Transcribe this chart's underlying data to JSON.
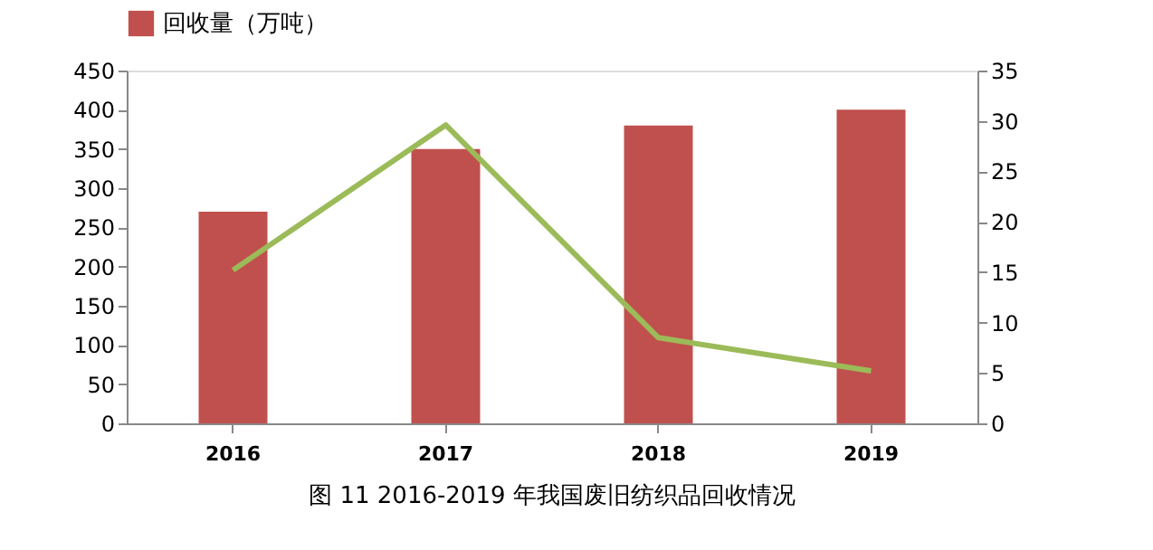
{
  "chart_data": {
    "type": "bar",
    "title": "图 11  2016-2019 年我国废旧纺织品回收情况",
    "categories": [
      "2016",
      "2017",
      "2018",
      "2019"
    ],
    "series": [
      {
        "name": "回收量（万吨）",
        "color": "#c0504d",
        "values": [
          270,
          350,
          380,
          400
        ]
      },
      {
        "type": "line",
        "axis": "y2",
        "color": "#9bbb59",
        "values": [
          15.2,
          29.6,
          8.5,
          5.2
        ]
      }
    ],
    "ylim": [
      0,
      450
    ],
    "yticks": [
      0,
      50,
      100,
      150,
      200,
      250,
      300,
      350,
      400,
      450
    ],
    "y2lim": [
      0,
      35
    ],
    "y2ticks": [
      0,
      5,
      10,
      15,
      20,
      25,
      30,
      35
    ],
    "grid": false,
    "legend": "top",
    "marker": "none",
    "line_style": "solid"
  }
}
